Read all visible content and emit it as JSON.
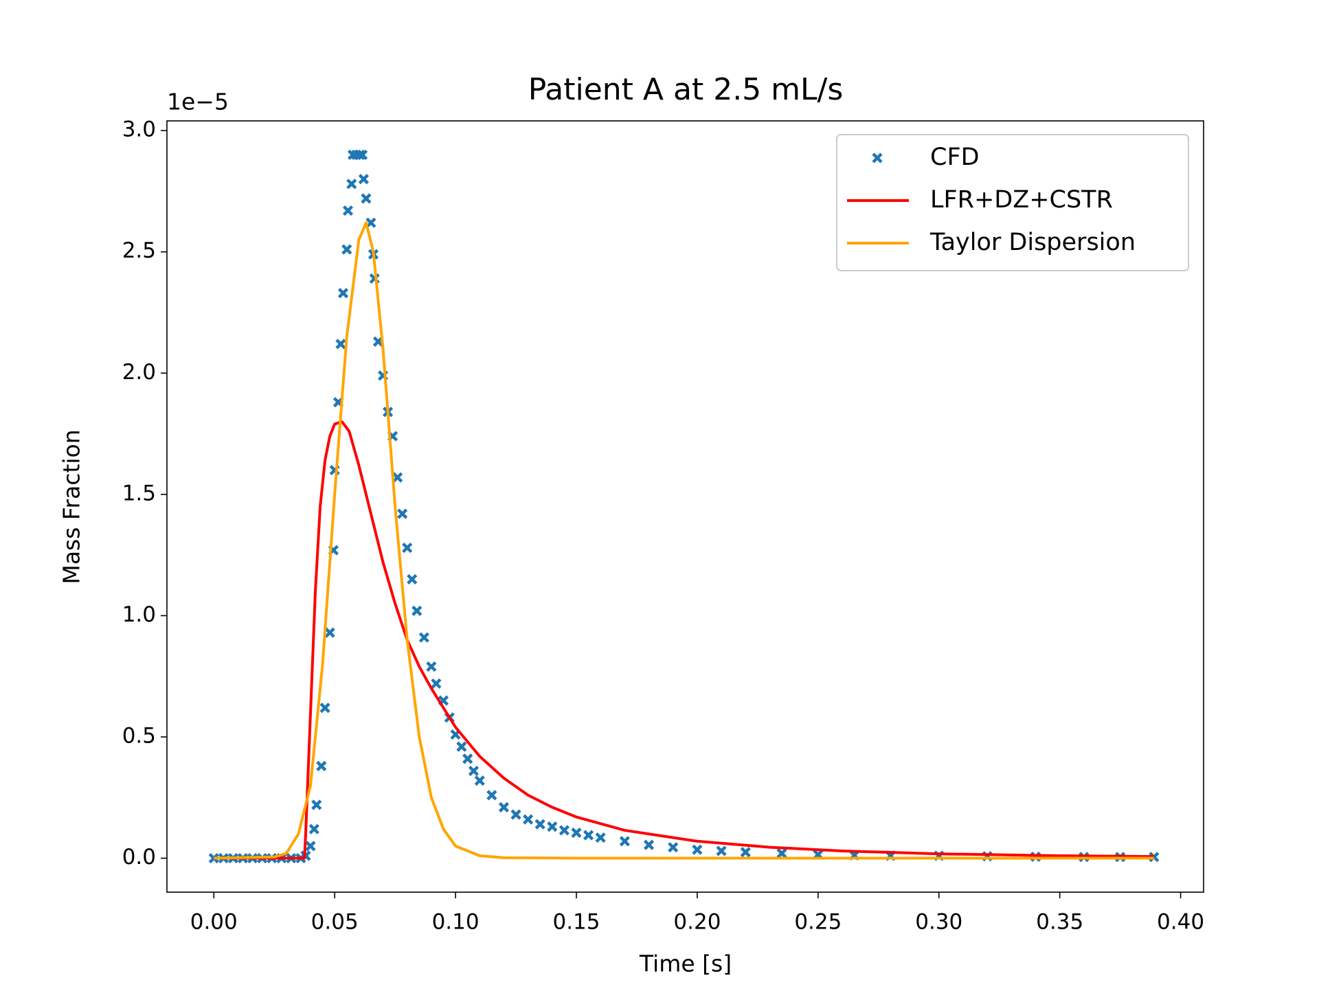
{
  "chart_data": {
    "type": "scatter-line",
    "title": "Patient A at 2.5 mL/s",
    "x_label": "Time [s]",
    "y_label": "Mass Fraction",
    "y_offset_text": "1e−5",
    "xlim": [
      -0.0194,
      0.4095
    ],
    "ylim": [
      -0.14,
      3.04
    ],
    "xticks": [
      {
        "value": 0,
        "label": "0.00"
      },
      {
        "value": 0.05,
        "label": "0.05"
      },
      {
        "value": 0.1,
        "label": "0.10"
      },
      {
        "value": 0.15,
        "label": "0.15"
      },
      {
        "value": 0.2,
        "label": "0.20"
      },
      {
        "value": 0.25,
        "label": "0.25"
      },
      {
        "value": 0.3,
        "label": "0.30"
      },
      {
        "value": 0.35,
        "label": "0.35"
      },
      {
        "value": 0.4,
        "label": "0.40"
      }
    ],
    "yticks": [
      {
        "value": 0,
        "label": "0.0"
      },
      {
        "value": 0.5,
        "label": "0.5"
      },
      {
        "value": 1,
        "label": "1.0"
      },
      {
        "value": 1.5,
        "label": "1.5"
      },
      {
        "value": 2,
        "label": "2.0"
      },
      {
        "value": 2.5,
        "label": "2.5"
      },
      {
        "value": 3,
        "label": "3.0"
      }
    ],
    "grid": false,
    "legend": "upper right",
    "series": [
      {
        "name": "CFD",
        "color": "#1f77b4",
        "mark": "x",
        "x": [
          0,
          0.004,
          0.008,
          0.012,
          0.016,
          0.02,
          0.024,
          0.028,
          0.032,
          0.036,
          0.038,
          0.04,
          0.0415,
          0.0425,
          0.0445,
          0.046,
          0.048,
          0.0495,
          0.05,
          0.0515,
          0.0525,
          0.0535,
          0.055,
          0.0555,
          0.057,
          0.0575,
          0.059,
          0.0605,
          0.0615,
          0.062,
          0.063,
          0.065,
          0.066,
          0.0665,
          0.068,
          0.07,
          0.072,
          0.074,
          0.076,
          0.078,
          0.08,
          0.082,
          0.084,
          0.087,
          0.09,
          0.092,
          0.095,
          0.0975,
          0.1,
          0.1025,
          0.105,
          0.1075,
          0.11,
          0.115,
          0.12,
          0.125,
          0.13,
          0.135,
          0.14,
          0.145,
          0.15,
          0.155,
          0.16,
          0.17,
          0.18,
          0.19,
          0.2,
          0.21,
          0.22,
          0.235,
          0.25,
          0.265,
          0.28,
          0.3,
          0.32,
          0.34,
          0.36,
          0.375,
          0.389
        ],
        "values": [
          0,
          0,
          0,
          0,
          0,
          0,
          0,
          0,
          0,
          0,
          0.01,
          0.05,
          0.12,
          0.22,
          0.38,
          0.62,
          0.93,
          1.27,
          1.6,
          1.88,
          2.12,
          2.33,
          2.51,
          2.67,
          2.78,
          2.9,
          2.9,
          2.9,
          2.9,
          2.8,
          2.72,
          2.62,
          2.49,
          2.39,
          2.13,
          1.99,
          1.84,
          1.74,
          1.57,
          1.42,
          1.28,
          1.15,
          1.02,
          0.91,
          0.79,
          0.72,
          0.65,
          0.58,
          0.51,
          0.46,
          0.41,
          0.36,
          0.32,
          0.26,
          0.21,
          0.18,
          0.16,
          0.14,
          0.13,
          0.115,
          0.105,
          0.095,
          0.085,
          0.07,
          0.055,
          0.045,
          0.035,
          0.03,
          0.025,
          0.02,
          0.015,
          0.012,
          0.01,
          0.01,
          0.008,
          0.006,
          0.005,
          0.005,
          0.005
        ]
      },
      {
        "name": "LFR+DZ+CSTR",
        "color": "#ff0000",
        "mark": "line",
        "x": [
          0,
          0.0375,
          0.038,
          0.04,
          0.042,
          0.044,
          0.046,
          0.048,
          0.05,
          0.053,
          0.056,
          0.06,
          0.065,
          0.07,
          0.075,
          0.08,
          0.085,
          0.09,
          0.1,
          0.11,
          0.12,
          0.13,
          0.14,
          0.15,
          0.17,
          0.2,
          0.23,
          0.26,
          0.3,
          0.35,
          0.389
        ],
        "values": [
          0,
          0,
          0.1,
          0.6,
          1.1,
          1.45,
          1.64,
          1.74,
          1.79,
          1.8,
          1.76,
          1.62,
          1.42,
          1.22,
          1.05,
          0.9,
          0.79,
          0.7,
          0.54,
          0.42,
          0.33,
          0.26,
          0.21,
          0.17,
          0.115,
          0.07,
          0.045,
          0.03,
          0.018,
          0.01,
          0.007
        ]
      },
      {
        "name": "Taylor Dispersion",
        "color": "#ffa500",
        "mark": "line",
        "x": [
          0,
          0.025,
          0.03,
          0.035,
          0.04,
          0.045,
          0.05,
          0.055,
          0.06,
          0.063,
          0.066,
          0.07,
          0.075,
          0.08,
          0.085,
          0.09,
          0.095,
          0.1,
          0.11,
          0.12,
          0.15,
          0.389
        ],
        "values": [
          0,
          0.005,
          0.02,
          0.1,
          0.3,
          0.8,
          1.5,
          2.15,
          2.55,
          2.62,
          2.5,
          2.1,
          1.45,
          0.9,
          0.5,
          0.25,
          0.12,
          0.05,
          0.01,
          0.002,
          0,
          0
        ]
      }
    ]
  }
}
